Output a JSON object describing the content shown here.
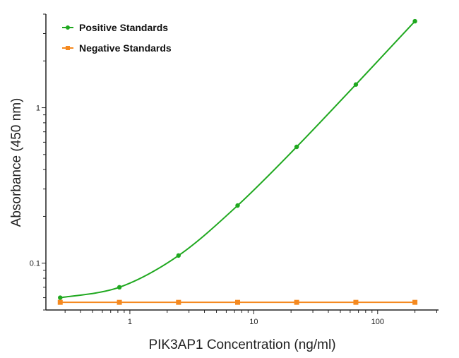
{
  "chart_data": {
    "type": "line",
    "title": "",
    "xlabel": "PIK3AP1 Concentration (ng/ml)",
    "ylabel": "Absorbance (450 nm)",
    "xscale": "log",
    "yscale": "log",
    "xlim": [
      0.21,
      310
    ],
    "ylim": [
      0.05,
      4
    ],
    "x_ticks": [
      {
        "value": 1,
        "label": "1"
      },
      {
        "value": 10,
        "label": "10"
      },
      {
        "value": 100,
        "label": "100"
      }
    ],
    "y_ticks": [
      {
        "value": 0.1,
        "label": "0.1"
      },
      {
        "value": 1,
        "label": "1"
      }
    ],
    "grid": false,
    "legend_position": "top-left",
    "series": [
      {
        "name": "Positive Standards",
        "color": "#1fa81f",
        "marker": "circle",
        "curve": "smooth fit",
        "x": [
          0.274,
          0.823,
          2.47,
          7.41,
          22.2,
          66.7,
          200
        ],
        "y": [
          0.06,
          0.07,
          0.112,
          0.235,
          0.56,
          1.41,
          3.6
        ]
      },
      {
        "name": "Negative Standards",
        "color": "#f5891f",
        "marker": "square",
        "curve": "straight",
        "x": [
          0.274,
          0.823,
          2.47,
          7.41,
          22.2,
          66.7,
          200
        ],
        "y": [
          0.056,
          0.056,
          0.056,
          0.056,
          0.056,
          0.056,
          0.056
        ]
      }
    ]
  }
}
